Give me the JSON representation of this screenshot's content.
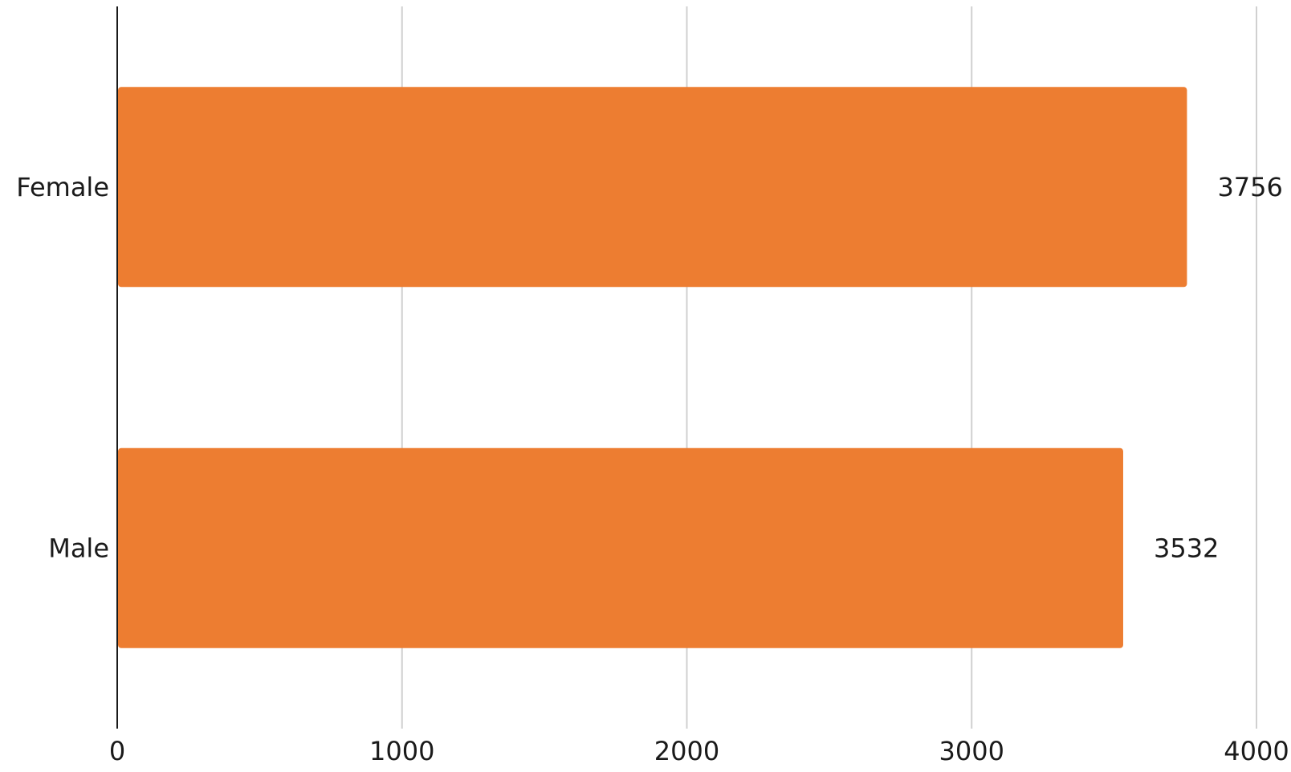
{
  "chart_data": {
    "type": "bar",
    "orientation": "horizontal",
    "title": "",
    "xlabel": "",
    "ylabel": "",
    "categories": [
      "Female",
      "Male"
    ],
    "series": [
      {
        "values": [
          3756,
          3532
        ],
        "color": "#ED7D31"
      }
    ],
    "data_labels": [
      "3756",
      "3532"
    ],
    "xlim": [
      0,
      4000
    ],
    "xticks": [
      0,
      1000,
      2000,
      3000,
      4000
    ],
    "xtick_labels": [
      "0",
      "1000",
      "2000",
      "3000",
      "4000"
    ],
    "grid": true,
    "legend": "none"
  }
}
